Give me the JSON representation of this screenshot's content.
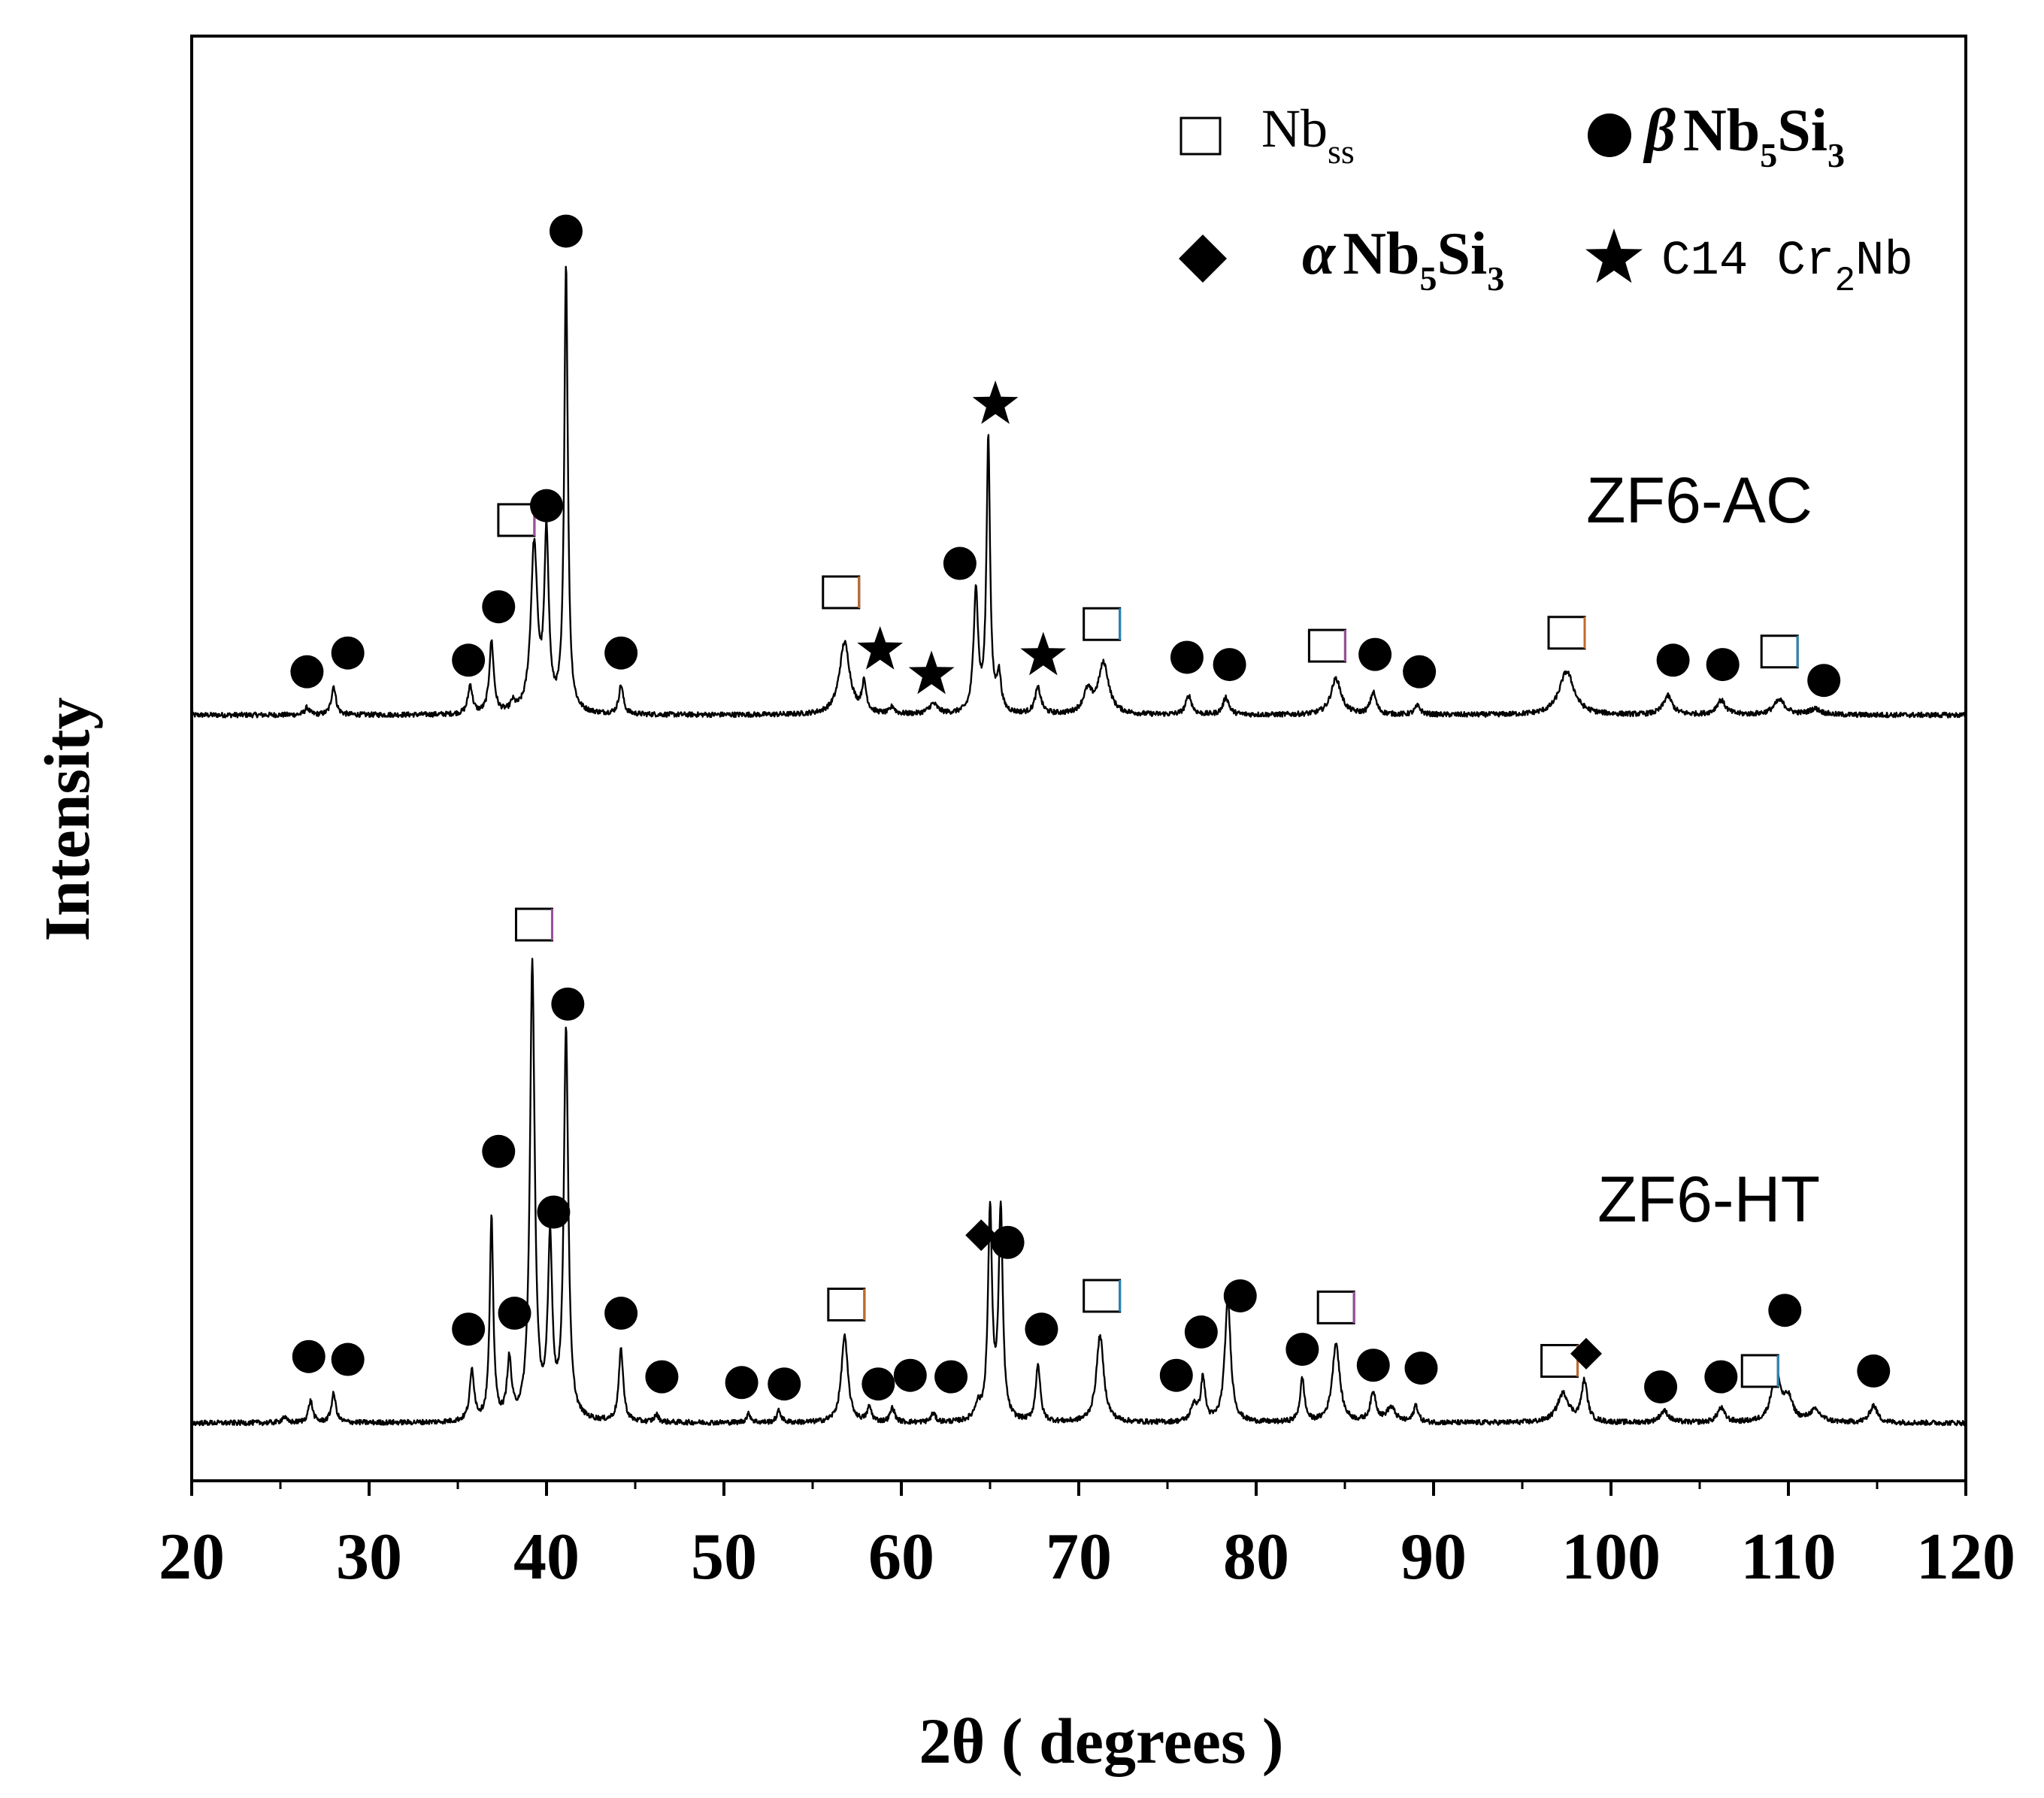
{
  "chart_data": {
    "type": "line",
    "title": "",
    "xlabel": "2θ ( degrees )",
    "ylabel": "Intensity",
    "xlim": [
      20,
      120
    ],
    "ylim": [
      0,
      100
    ],
    "xticks": [
      "20",
      "30",
      "40",
      "50",
      "60",
      "70",
      "80",
      "90",
      "100",
      "110",
      "120"
    ],
    "yticks_shown": false,
    "grid": false,
    "legend_position": "top-right",
    "legend": [
      {
        "key": "nbss",
        "symbol": "open-square",
        "text": "Nb",
        "sub": "ss",
        "after": ""
      },
      {
        "key": "beta",
        "symbol": "filled-circle",
        "prefix": "β",
        "text": "Nb",
        "sub": "5",
        "after": "Si",
        "sub2": "3"
      },
      {
        "key": "alpha",
        "symbol": "filled-diamond",
        "prefix": "α",
        "text": "Nb",
        "sub": "5",
        "after": "Si",
        "sub2": "3"
      },
      {
        "key": "c14",
        "symbol": "filled-star",
        "text": "C14 Cr",
        "sub": "2",
        "after": "Nb"
      }
    ],
    "series": [
      {
        "name": "ZF6-AC",
        "baseline": 53,
        "peaks": [
          {
            "x": 26.5,
            "h": 0.5,
            "w": 0.15
          },
          {
            "x": 28.0,
            "h": 2.0,
            "w": 0.15
          },
          {
            "x": 35.7,
            "h": 2.0,
            "w": 0.15
          },
          {
            "x": 36.9,
            "h": 5.0,
            "w": 0.15
          },
          {
            "x": 38.1,
            "h": 0.6,
            "w": 0.15
          },
          {
            "x": 39.3,
            "h": 11.5,
            "w": 0.22
          },
          {
            "x": 40.0,
            "h": 12.0,
            "w": 0.15
          },
          {
            "x": 41.1,
            "h": 31.0,
            "w": 0.12
          },
          {
            "x": 44.2,
            "h": 2.0,
            "w": 0.15
          },
          {
            "x": 56.8,
            "h": 5.0,
            "w": 0.35
          },
          {
            "x": 57.9,
            "h": 2.0,
            "w": 0.15
          },
          {
            "x": 59.5,
            "h": 0.5,
            "w": 0.15
          },
          {
            "x": 61.8,
            "h": 0.7,
            "w": 0.3
          },
          {
            "x": 64.2,
            "h": 8.5,
            "w": 0.15
          },
          {
            "x": 64.9,
            "h": 19.0,
            "w": 0.12
          },
          {
            "x": 65.5,
            "h": 2.5,
            "w": 0.15
          },
          {
            "x": 67.7,
            "h": 1.8,
            "w": 0.2
          },
          {
            "x": 70.5,
            "h": 1.5,
            "w": 0.3
          },
          {
            "x": 71.4,
            "h": 3.5,
            "w": 0.35
          },
          {
            "x": 76.2,
            "h": 1.3,
            "w": 0.2
          },
          {
            "x": 78.3,
            "h": 1.2,
            "w": 0.2
          },
          {
            "x": 84.5,
            "h": 2.5,
            "w": 0.35
          },
          {
            "x": 86.6,
            "h": 1.5,
            "w": 0.2
          },
          {
            "x": 89.1,
            "h": 0.6,
            "w": 0.2
          },
          {
            "x": 97.5,
            "h": 3.0,
            "w": 0.5
          },
          {
            "x": 103.2,
            "h": 1.3,
            "w": 0.3
          },
          {
            "x": 106.2,
            "h": 1.0,
            "w": 0.3
          },
          {
            "x": 109.5,
            "h": 1.0,
            "w": 0.4
          },
          {
            "x": 111.5,
            "h": 0.4,
            "w": 0.4
          }
        ],
        "markers": [
          {
            "type": "beta",
            "x": 26.5,
            "h": 3.0
          },
          {
            "type": "beta",
            "x": 28.8,
            "h": 4.3
          },
          {
            "type": "beta",
            "x": 35.6,
            "h": 3.8
          },
          {
            "type": "beta",
            "x": 37.3,
            "h": 7.5
          },
          {
            "type": "nbss",
            "x": 38.3,
            "h": 13.5
          },
          {
            "type": "beta",
            "x": 40.0,
            "h": 14.5
          },
          {
            "type": "beta",
            "x": 41.1,
            "h": 33.5
          },
          {
            "type": "beta",
            "x": 44.2,
            "h": 4.3
          },
          {
            "type": "nbss",
            "x": 56.6,
            "h": 8.5
          },
          {
            "type": "c14",
            "x": 58.8,
            "h": 4.5
          },
          {
            "type": "c14",
            "x": 61.7,
            "h": 2.8
          },
          {
            "type": "beta",
            "x": 63.3,
            "h": 10.5
          },
          {
            "type": "c14",
            "x": 65.3,
            "h": 21.5
          },
          {
            "type": "c14",
            "x": 68.0,
            "h": 4.1
          },
          {
            "type": "nbss",
            "x": 71.3,
            "h": 6.3
          },
          {
            "type": "beta",
            "x": 76.1,
            "h": 4.0
          },
          {
            "type": "beta",
            "x": 78.5,
            "h": 3.5
          },
          {
            "type": "nbss",
            "x": 84.0,
            "h": 4.8
          },
          {
            "type": "beta",
            "x": 86.7,
            "h": 4.2
          },
          {
            "type": "beta",
            "x": 89.2,
            "h": 3.0
          },
          {
            "type": "nbss",
            "x": 97.5,
            "h": 5.7
          },
          {
            "type": "beta",
            "x": 103.5,
            "h": 3.8
          },
          {
            "type": "beta",
            "x": 106.3,
            "h": 3.5
          },
          {
            "type": "nbss",
            "x": 109.5,
            "h": 4.4
          },
          {
            "type": "beta",
            "x": 112.0,
            "h": 2.4
          }
        ]
      },
      {
        "name": "ZF6-HT",
        "baseline": 4,
        "peaks": [
          {
            "x": 25.2,
            "h": 0.4,
            "w": 0.15
          },
          {
            "x": 26.7,
            "h": 1.5,
            "w": 0.15
          },
          {
            "x": 28.0,
            "h": 2.0,
            "w": 0.15
          },
          {
            "x": 35.8,
            "h": 3.5,
            "w": 0.15
          },
          {
            "x": 36.9,
            "h": 14.0,
            "w": 0.12
          },
          {
            "x": 37.9,
            "h": 4.0,
            "w": 0.15
          },
          {
            "x": 39.2,
            "h": 31.5,
            "w": 0.16
          },
          {
            "x": 40.2,
            "h": 12.0,
            "w": 0.15
          },
          {
            "x": 41.1,
            "h": 27.0,
            "w": 0.15
          },
          {
            "x": 44.2,
            "h": 5.0,
            "w": 0.15
          },
          {
            "x": 46.2,
            "h": 0.5,
            "w": 0.15
          },
          {
            "x": 51.4,
            "h": 0.6,
            "w": 0.15
          },
          {
            "x": 53.1,
            "h": 0.8,
            "w": 0.15
          },
          {
            "x": 56.8,
            "h": 6.0,
            "w": 0.22
          },
          {
            "x": 58.2,
            "h": 1.0,
            "w": 0.15
          },
          {
            "x": 59.5,
            "h": 1.0,
            "w": 0.15
          },
          {
            "x": 61.8,
            "h": 0.6,
            "w": 0.15
          },
          {
            "x": 64.3,
            "h": 1.0,
            "w": 0.2
          },
          {
            "x": 65.0,
            "h": 14.5,
            "w": 0.14
          },
          {
            "x": 65.6,
            "h": 14.5,
            "w": 0.14
          },
          {
            "x": 67.7,
            "h": 4.0,
            "w": 0.15
          },
          {
            "x": 71.2,
            "h": 6.0,
            "w": 0.25
          },
          {
            "x": 76.5,
            "h": 1.2,
            "w": 0.2
          },
          {
            "x": 77.0,
            "h": 3.0,
            "w": 0.15
          },
          {
            "x": 78.4,
            "h": 8.5,
            "w": 0.2
          },
          {
            "x": 82.6,
            "h": 3.0,
            "w": 0.15
          },
          {
            "x": 84.5,
            "h": 5.5,
            "w": 0.25
          },
          {
            "x": 86.6,
            "h": 2.0,
            "w": 0.2
          },
          {
            "x": 87.6,
            "h": 1.0,
            "w": 0.3
          },
          {
            "x": 89.0,
            "h": 1.2,
            "w": 0.15
          },
          {
            "x": 97.3,
            "h": 2.0,
            "w": 0.4
          },
          {
            "x": 98.5,
            "h": 2.8,
            "w": 0.2
          },
          {
            "x": 103.0,
            "h": 0.8,
            "w": 0.3
          },
          {
            "x": 106.2,
            "h": 1.0,
            "w": 0.25
          },
          {
            "x": 109.3,
            "h": 3.5,
            "w": 0.3
          },
          {
            "x": 110.0,
            "h": 1.5,
            "w": 0.3
          },
          {
            "x": 111.5,
            "h": 0.8,
            "w": 0.4
          },
          {
            "x": 114.8,
            "h": 1.2,
            "w": 0.25
          }
        ],
        "markers": [
          {
            "type": "beta",
            "x": 26.6,
            "h": 4.6
          },
          {
            "type": "beta",
            "x": 28.8,
            "h": 4.4
          },
          {
            "type": "beta",
            "x": 35.6,
            "h": 6.5
          },
          {
            "type": "beta",
            "x": 37.3,
            "h": 18.8
          },
          {
            "type": "beta",
            "x": 38.2,
            "h": 7.6
          },
          {
            "type": "nbss",
            "x": 39.3,
            "h": 34.5
          },
          {
            "type": "beta",
            "x": 40.4,
            "h": 14.6
          },
          {
            "type": "beta",
            "x": 41.2,
            "h": 29.0
          },
          {
            "type": "beta",
            "x": 44.2,
            "h": 7.6
          },
          {
            "type": "beta",
            "x": 46.5,
            "h": 3.2
          },
          {
            "type": "beta",
            "x": 51.0,
            "h": 2.8
          },
          {
            "type": "beta",
            "x": 53.4,
            "h": 2.7
          },
          {
            "type": "nbss",
            "x": 56.9,
            "h": 8.2
          },
          {
            "type": "beta",
            "x": 58.7,
            "h": 2.7
          },
          {
            "type": "beta",
            "x": 60.5,
            "h": 3.3
          },
          {
            "type": "beta",
            "x": 62.8,
            "h": 3.2
          },
          {
            "type": "alpha",
            "x": 64.5,
            "h": 13.0
          },
          {
            "type": "beta",
            "x": 66.0,
            "h": 12.5
          },
          {
            "type": "beta",
            "x": 67.9,
            "h": 6.5
          },
          {
            "type": "nbss",
            "x": 71.3,
            "h": 8.8
          },
          {
            "type": "beta",
            "x": 75.5,
            "h": 3.3
          },
          {
            "type": "beta",
            "x": 76.9,
            "h": 6.3
          },
          {
            "type": "beta",
            "x": 79.1,
            "h": 8.8
          },
          {
            "type": "beta",
            "x": 82.6,
            "h": 5.1
          },
          {
            "type": "nbss",
            "x": 84.5,
            "h": 8.0
          },
          {
            "type": "beta",
            "x": 86.6,
            "h": 4.0
          },
          {
            "type": "beta",
            "x": 89.3,
            "h": 3.8
          },
          {
            "type": "nbss",
            "x": 97.1,
            "h": 4.3
          },
          {
            "type": "alpha",
            "x": 98.6,
            "h": 4.8
          },
          {
            "type": "beta",
            "x": 102.8,
            "h": 2.5
          },
          {
            "type": "beta",
            "x": 106.2,
            "h": 3.2
          },
          {
            "type": "nbss",
            "x": 108.4,
            "h": 3.6
          },
          {
            "type": "beta",
            "x": 109.8,
            "h": 7.8
          },
          {
            "type": "beta",
            "x": 114.8,
            "h": 3.6
          }
        ]
      }
    ]
  }
}
